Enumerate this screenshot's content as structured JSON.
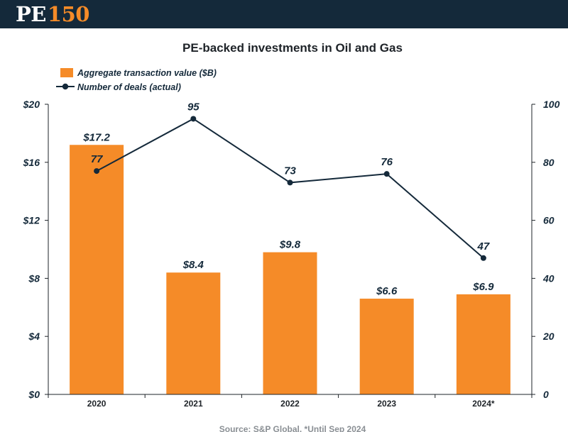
{
  "brand": {
    "logo_pe": "PE",
    "logo_num": "150"
  },
  "source_note": "Source: S&P Global. *Until Sep 2024",
  "chart_data": {
    "type": "bar",
    "title": "PE-backed investments in Oil and Gas",
    "categories": [
      "2020",
      "2021",
      "2022",
      "2023",
      "2024*"
    ],
    "series": [
      {
        "name": "Aggregate transaction value ($B)",
        "kind": "bar",
        "axis": "left",
        "values": [
          17.2,
          8.4,
          9.8,
          6.6,
          6.9
        ],
        "labels": [
          "$17.2",
          "$8.4",
          "$9.8",
          "$6.6",
          "$6.9"
        ],
        "color": "#f58b28"
      },
      {
        "name": "Number of deals (actual)",
        "kind": "line",
        "axis": "right",
        "values": [
          77,
          95,
          73,
          76,
          47
        ],
        "labels": [
          "77",
          "95",
          "73",
          "76",
          "47"
        ],
        "color": "#14293a"
      }
    ],
    "y_left": {
      "ylim": [
        0,
        20
      ],
      "ticks": [
        0,
        4,
        8,
        12,
        16,
        20
      ],
      "tick_labels": [
        "$0",
        "$4",
        "$8",
        "$12",
        "$16",
        "$20"
      ]
    },
    "y_right": {
      "ylim": [
        0,
        100
      ],
      "ticks": [
        0,
        20,
        40,
        60,
        80,
        100
      ],
      "tick_labels": [
        "0",
        "20",
        "40",
        "60",
        "80",
        "100"
      ]
    },
    "xlabel": "",
    "ylabel": "",
    "grid": false,
    "legend_position": "top-left"
  }
}
